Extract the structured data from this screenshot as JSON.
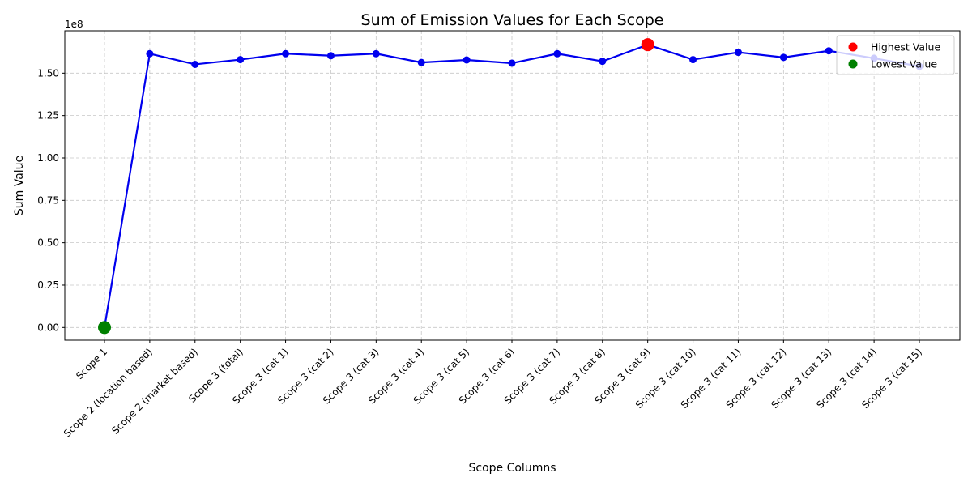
{
  "chart_data": {
    "type": "line",
    "title": "Sum of Emission Values for Each Scope",
    "xlabel": "Scope Columns",
    "ylabel": "Sum Value",
    "y_offset_label": "1e8",
    "categories": [
      "Scope 1",
      "Scope 2 (location based)",
      "Scope 2 (market based)",
      "Scope 3 (total)",
      "Scope 3 (cat 1)",
      "Scope 3 (cat 2)",
      "Scope 3 (cat 3)",
      "Scope 3 (cat 4)",
      "Scope 3 (cat 5)",
      "Scope 3 (cat 6)",
      "Scope 3 (cat 7)",
      "Scope 3 (cat 8)",
      "Scope 3 (cat 9)",
      "Scope 3 (cat 10)",
      "Scope 3 (cat 11)",
      "Scope 3 (cat 12)",
      "Scope 3 (cat 13)",
      "Scope 3 (cat 14)",
      "Scope 3 (cat 15)"
    ],
    "values": [
      0,
      161500000,
      155200000,
      158000000,
      161500000,
      160300000,
      161500000,
      156300000,
      157800000,
      155900000,
      161500000,
      157000000,
      166800000,
      158000000,
      162300000,
      159300000,
      163200000,
      158800000,
      154000000
    ],
    "ylim": [
      -7500000,
      175000000
    ],
    "yticks": [
      0,
      25000000,
      50000000,
      75000000,
      100000000,
      125000000,
      150000000
    ],
    "ytick_labels": [
      "0.00",
      "0.25",
      "0.50",
      "0.75",
      "1.00",
      "1.25",
      "1.50"
    ],
    "grid": true,
    "line_color": "#0000ee",
    "highest": {
      "index": 12,
      "color": "#ff0000"
    },
    "lowest": {
      "index": 0,
      "color": "#008000"
    },
    "legend": {
      "placement": "top-right",
      "entries": [
        {
          "label": "Highest Value",
          "color": "#ff0000"
        },
        {
          "label": "Lowest Value",
          "color": "#008000"
        }
      ]
    }
  }
}
